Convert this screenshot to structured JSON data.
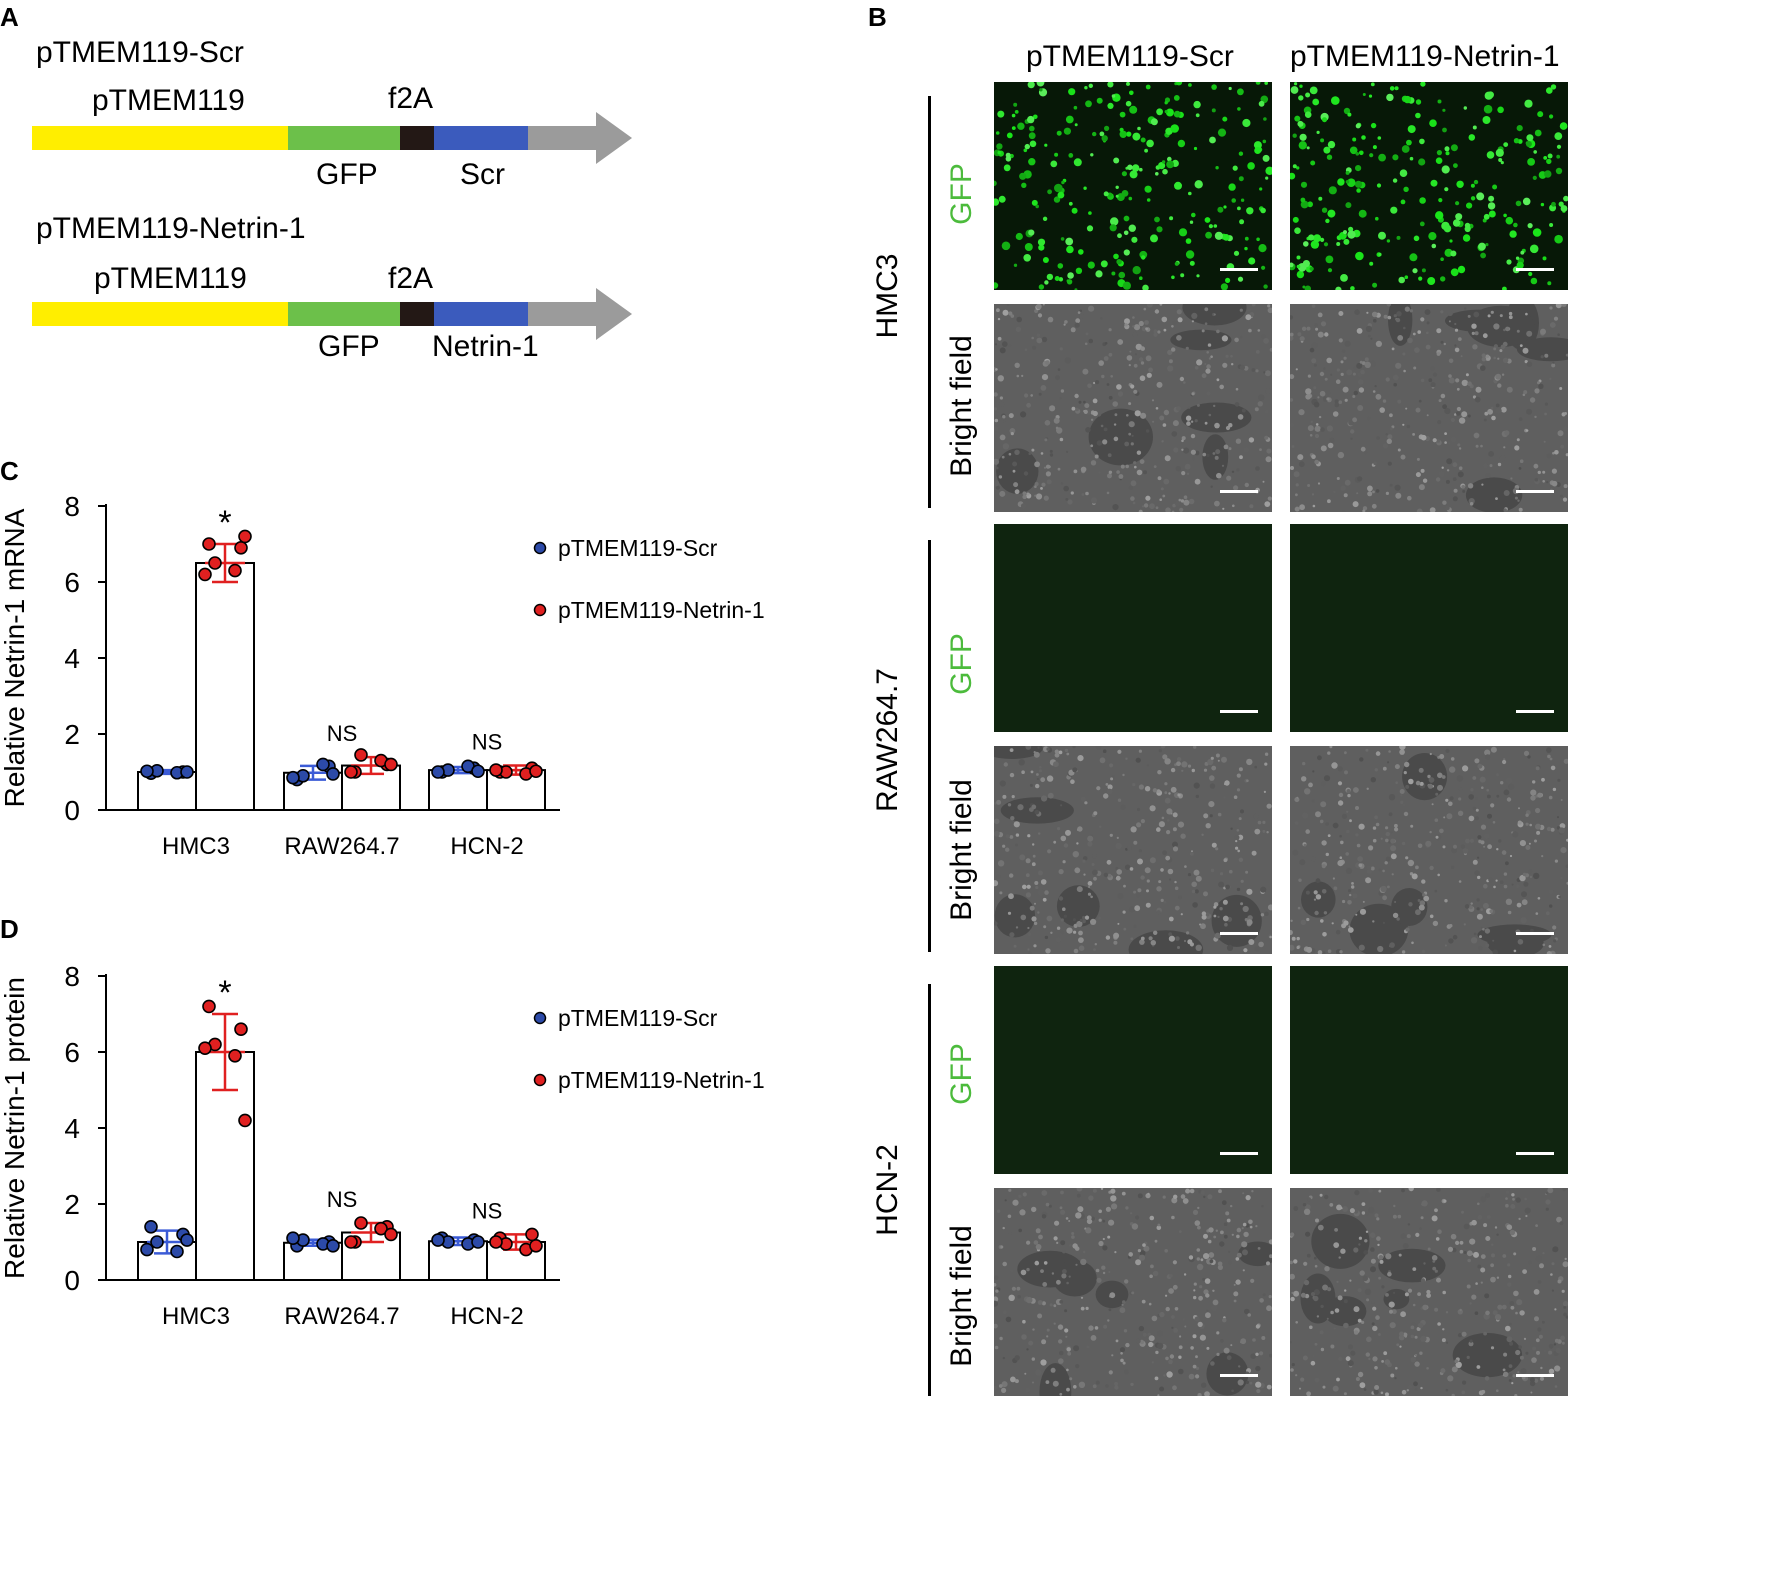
{
  "panels": {
    "a": "A",
    "b": "B",
    "c": "C",
    "d": "D"
  },
  "construct1": {
    "title": "pTMEM119-Scr",
    "promoter": "pTMEM119",
    "gfp": "GFP",
    "f2a": "f2A",
    "gene": "Scr"
  },
  "construct2": {
    "title": "pTMEM119-Netrin-1",
    "promoter": "pTMEM119",
    "gfp": "GFP",
    "f2a": "f2A",
    "gene": "Netrin-1"
  },
  "colors": {
    "promoter": "#ffee00",
    "gfp": "#6cc04a",
    "f2a": "#231815",
    "gene": "#3b5bbd",
    "arrow": "#9b9b9b",
    "scr_dot": "#2c4aa8",
    "netrin_dot": "#e02020",
    "scr_err": "#3b5bd6",
    "netrin_err": "#e02020",
    "gfp_label": "#4cbb3c"
  },
  "microscopy": {
    "columns": [
      "pTMEM119-Scr",
      "pTMEM119-Netrin-1"
    ],
    "rows": [
      {
        "cell": "HMC3",
        "gfp": "GFP",
        "bf": "Bright field"
      },
      {
        "cell": "RAW264.7",
        "gfp": "GFP",
        "bf": "Bright field"
      },
      {
        "cell": "HCN-2",
        "gfp": "GFP",
        "bf": "Bright field"
      }
    ]
  },
  "chart_data": [
    {
      "type": "bar",
      "ylabel": "Relative Netrin-1 mRNA",
      "categories": [
        "HMC3",
        "RAW264.7",
        "HCN-2"
      ],
      "ylim": [
        0,
        8
      ],
      "yticks": [
        0,
        2,
        4,
        6,
        8
      ],
      "legend": {
        "position": "top-right"
      },
      "series": [
        {
          "name": "pTMEM119-Scr",
          "values": [
            1.0,
            0.98,
            1.05
          ],
          "err": [
            0.05,
            0.18,
            0.08
          ],
          "points": [
            [
              0.97,
              1.0,
              1.03,
              0.98,
              1.02,
              1.0
            ],
            [
              0.8,
              1.15,
              0.9,
              1.2,
              0.85,
              0.95
            ],
            [
              1.0,
              1.1,
              1.05,
              1.15,
              1.0,
              1.02
            ]
          ]
        },
        {
          "name": "pTMEM119-Netrin-1",
          "values": [
            6.5,
            1.17,
            1.05
          ],
          "err": [
            0.5,
            0.22,
            0.12
          ],
          "points": [
            [
              7.0,
              6.9,
              6.5,
              6.3,
              6.2,
              7.2
            ],
            [
              1.0,
              1.2,
              1.45,
              1.3,
              1.0,
              1.2
            ],
            [
              1.0,
              1.1,
              1.0,
              0.95,
              1.05,
              1.02
            ]
          ]
        }
      ],
      "annotations": [
        "*",
        "NS",
        "NS"
      ]
    },
    {
      "type": "bar",
      "ylabel": "Relative Netrin-1 protein",
      "categories": [
        "HMC3",
        "RAW264.7",
        "HCN-2"
      ],
      "ylim": [
        0,
        8
      ],
      "yticks": [
        0,
        2,
        4,
        6,
        8
      ],
      "legend": {
        "position": "top-right"
      },
      "series": [
        {
          "name": "pTMEM119-Scr",
          "values": [
            1.0,
            0.98,
            1.02
          ],
          "err": [
            0.3,
            0.08,
            0.1
          ],
          "points": [
            [
              1.4,
              1.2,
              1.0,
              0.75,
              0.8,
              1.05
            ],
            [
              0.9,
              1.0,
              1.05,
              0.95,
              1.1,
              0.9
            ],
            [
              1.1,
              1.05,
              1.0,
              0.95,
              1.05,
              1.0
            ]
          ]
        },
        {
          "name": "pTMEM119-Netrin-1",
          "values": [
            6.0,
            1.25,
            1.0
          ],
          "err": [
            1.0,
            0.25,
            0.2
          ],
          "points": [
            [
              7.2,
              6.6,
              6.2,
              5.9,
              6.1,
              4.2
            ],
            [
              1.0,
              1.4,
              1.5,
              1.35,
              1.0,
              1.2
            ],
            [
              1.1,
              1.2,
              0.95,
              0.8,
              1.0,
              0.9
            ]
          ]
        }
      ],
      "annotations": [
        "*",
        "NS",
        "NS"
      ]
    }
  ]
}
